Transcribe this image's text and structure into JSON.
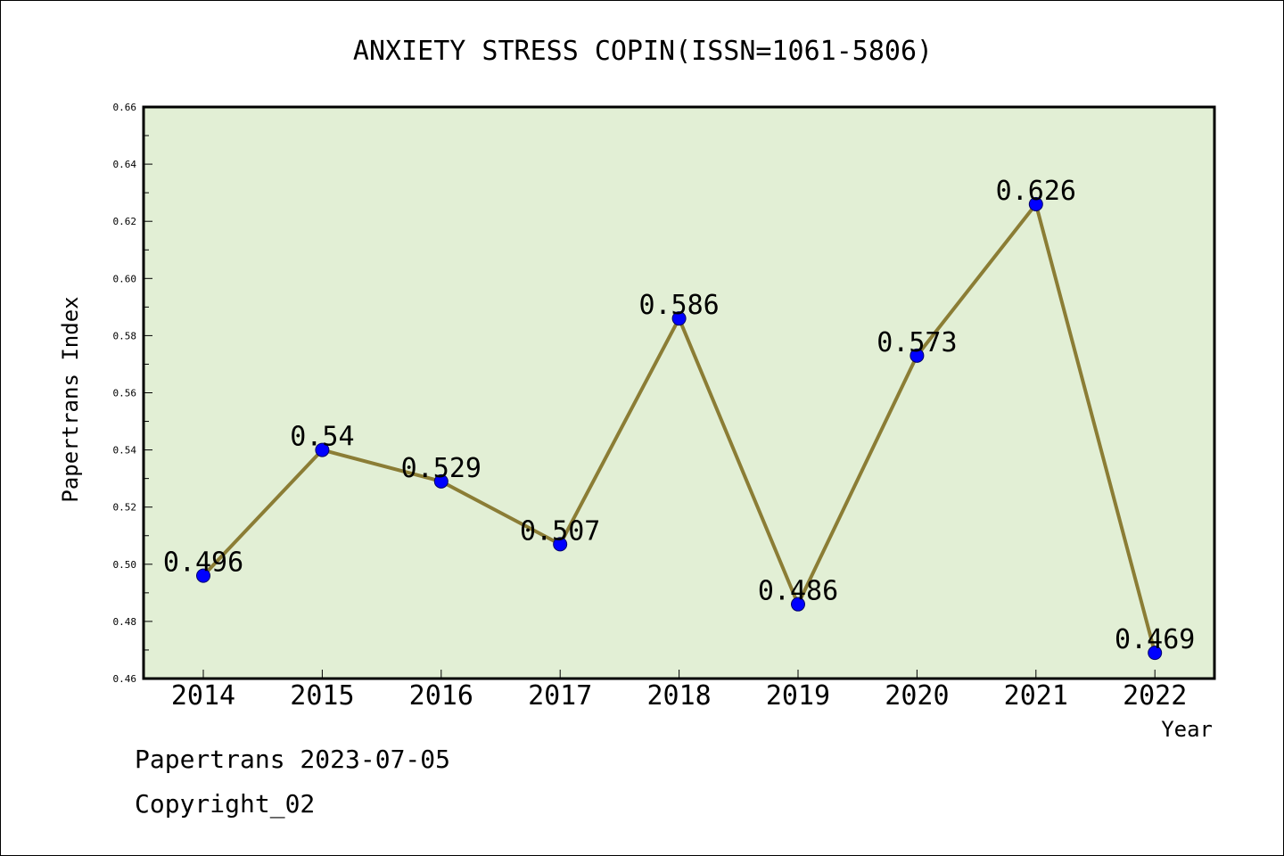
{
  "chart_data": {
    "type": "line",
    "title": "ANXIETY STRESS COPIN(ISSN=1061-5806)",
    "xlabel": "Year",
    "ylabel": "Papertrans Index",
    "categories": [
      "2014",
      "2015",
      "2016",
      "2017",
      "2018",
      "2019",
      "2020",
      "2021",
      "2022"
    ],
    "values": [
      0.496,
      0.54,
      0.529,
      0.507,
      0.586,
      0.486,
      0.573,
      0.626,
      0.469
    ],
    "data_labels": [
      "0.496",
      "0.54",
      "0.529",
      "0.507",
      "0.586",
      "0.486",
      "0.573",
      "0.626",
      "0.469"
    ],
    "ylim": [
      0.46,
      0.66
    ],
    "yticks": [
      "0.46",
      "0.48",
      "0.50",
      "0.52",
      "0.54",
      "0.56",
      "0.58",
      "0.60",
      "0.62",
      "0.64",
      "0.66"
    ],
    "grid": false,
    "legend": "none",
    "colors": {
      "plot_background": "#e2efd5",
      "line": "#8b7d35",
      "marker": "#0000ff"
    }
  },
  "footer": {
    "line1": "Papertrans 2023-07-05",
    "line2": "Copyright_02"
  }
}
